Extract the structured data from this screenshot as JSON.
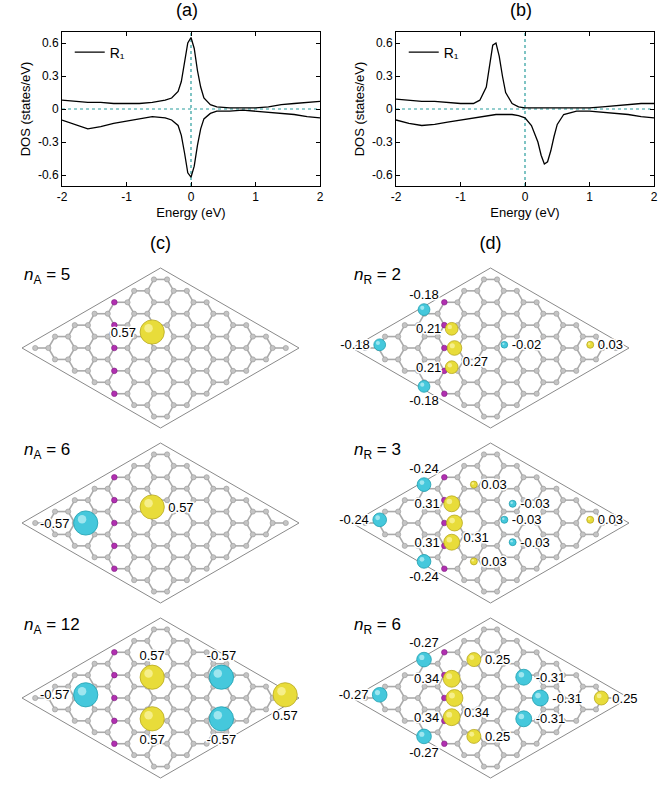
{
  "chart_data": [
    {
      "type": "line",
      "title": "(a)",
      "x_label": "Energy (eV)",
      "y_label": "DOS (states/eV)",
      "x": [
        -2,
        -1.8,
        -1.6,
        -1.4,
        -1.2,
        -1,
        -0.8,
        -0.6,
        -0.4,
        -0.3,
        -0.2,
        -0.15,
        -0.1,
        -0.05,
        0,
        0.05,
        0.1,
        0.15,
        0.2,
        0.3,
        0.4,
        0.6,
        0.8,
        1,
        1.2,
        1.4,
        1.6,
        1.8,
        2
      ],
      "series": [
        {
          "name": "R₁",
          "color": "#000000",
          "values": [
            0.08,
            0.07,
            0.06,
            0.06,
            0.05,
            0.05,
            0.05,
            0.06,
            0.08,
            0.1,
            0.16,
            0.25,
            0.42,
            0.6,
            0.65,
            0.55,
            0.35,
            0.2,
            0.1,
            0.04,
            0.02,
            0.01,
            0.01,
            0.01,
            0.02,
            0.04,
            0.05,
            0.06,
            0.07
          ]
        },
        {
          "color": "#000000",
          "values": [
            -0.1,
            -0.14,
            -0.18,
            -0.16,
            -0.13,
            -0.11,
            -0.09,
            -0.07,
            -0.08,
            -0.1,
            -0.15,
            -0.24,
            -0.4,
            -0.58,
            -0.62,
            -0.52,
            -0.33,
            -0.18,
            -0.09,
            -0.04,
            -0.02,
            -0.02,
            -0.01,
            -0.02,
            -0.03,
            -0.04,
            -0.05,
            -0.07,
            -0.08
          ]
        }
      ],
      "xlim": [
        -2,
        2
      ],
      "xticks": [
        -2,
        -1,
        0,
        1,
        2
      ],
      "ylim": [
        -0.7,
        0.7
      ],
      "yticks": [
        -0.6,
        -0.3,
        0,
        0.3,
        0.6
      ],
      "legend": "upper left",
      "reference_lines": {
        "x": 0,
        "y": 0
      }
    },
    {
      "type": "line",
      "title": "(b)",
      "x_label": "Energy (eV)",
      "y_label": "DOS (states/eV)",
      "x": [
        -2,
        -1.8,
        -1.6,
        -1.4,
        -1.2,
        -1,
        -0.8,
        -0.7,
        -0.6,
        -0.55,
        -0.5,
        -0.45,
        -0.4,
        -0.35,
        -0.3,
        -0.2,
        -0.1,
        0,
        0.1,
        0.2,
        0.25,
        0.3,
        0.35,
        0.4,
        0.45,
        0.5,
        0.6,
        0.8,
        1,
        1.2,
        1.4,
        1.6,
        1.8,
        2
      ],
      "series": [
        {
          "name": "R₁",
          "color": "#000000",
          "values": [
            0.09,
            0.08,
            0.07,
            0.07,
            0.06,
            0.05,
            0.05,
            0.08,
            0.2,
            0.4,
            0.58,
            0.6,
            0.48,
            0.3,
            0.15,
            0.05,
            0.02,
            0.01,
            0.01,
            0.01,
            0.01,
            0.01,
            0.01,
            0.01,
            0.01,
            0.01,
            0.01,
            0.01,
            0.01,
            0.02,
            0.03,
            0.04,
            0.05,
            0.05
          ]
        },
        {
          "color": "#000000",
          "values": [
            -0.1,
            -0.13,
            -0.15,
            -0.14,
            -0.12,
            -0.1,
            -0.08,
            -0.07,
            -0.06,
            -0.06,
            -0.05,
            -0.05,
            -0.05,
            -0.05,
            -0.05,
            -0.05,
            -0.06,
            -0.08,
            -0.15,
            -0.3,
            -0.42,
            -0.5,
            -0.48,
            -0.38,
            -0.25,
            -0.14,
            -0.05,
            -0.02,
            -0.02,
            -0.03,
            -0.04,
            -0.05,
            -0.07,
            -0.08
          ]
        }
      ],
      "xlim": [
        -2,
        2
      ],
      "xticks": [
        -2,
        -1,
        0,
        1,
        2
      ],
      "ylim": [
        -0.7,
        0.7
      ],
      "yticks": [
        -0.6,
        -0.3,
        0,
        0.3,
        0.6
      ],
      "legend": "upper left",
      "reference_lines": {
        "x": 0,
        "y": 0
      }
    }
  ],
  "structures": [
    {
      "title": "(c)",
      "panels": [
        {
          "variable": "n",
          "subscript": "A",
          "relation": "=",
          "value": 5,
          "moments": [
            0.57
          ]
        },
        {
          "variable": "n",
          "subscript": "A",
          "relation": "=",
          "value": 6,
          "moments": [
            0.57,
            -0.57
          ]
        },
        {
          "variable": "n",
          "subscript": "A",
          "relation": "=",
          "value": 12,
          "moments": [
            0.57,
            -0.57,
            -0.57,
            0.57,
            0.57,
            -0.57
          ]
        }
      ]
    },
    {
      "title": "(d)",
      "panels": [
        {
          "variable": "n",
          "subscript": "R",
          "relation": "=",
          "value": 2,
          "moments": [
            -0.18,
            0.21,
            -0.18,
            0.27,
            -0.02,
            0.03,
            0.21,
            -0.18
          ]
        },
        {
          "variable": "n",
          "subscript": "R",
          "relation": "=",
          "value": 3,
          "moments": [
            -0.24,
            0.03,
            0.31,
            -0.03,
            -0.24,
            0.31,
            -0.03,
            0.03,
            -0.03,
            0.31,
            -0.24,
            0.03
          ]
        },
        {
          "variable": "n",
          "subscript": "R",
          "relation": "=",
          "value": 6,
          "moments": [
            -0.27,
            0.25,
            0.34,
            -0.31,
            -0.27,
            0.34,
            -0.31,
            0.25,
            -0.31,
            0.34,
            -0.27,
            0.25
          ]
        }
      ]
    }
  ]
}
